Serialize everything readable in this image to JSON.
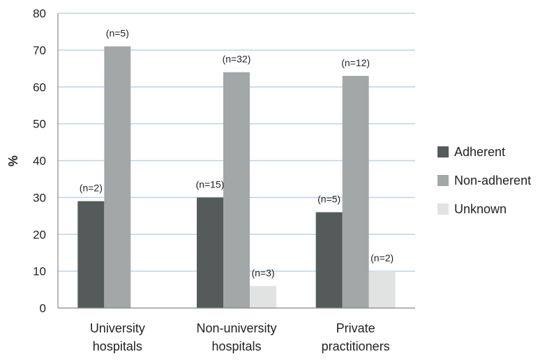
{
  "chart_data": {
    "type": "bar",
    "title": "",
    "xlabel": "",
    "ylabel": "%",
    "ylim": [
      0,
      80
    ],
    "yticks": [
      0,
      10,
      20,
      30,
      40,
      50,
      60,
      70,
      80
    ],
    "grid": true,
    "legend_position": "right",
    "categories": [
      [
        "University",
        "hospitals"
      ],
      [
        "Non-university",
        "hospitals"
      ],
      [
        "Private",
        "practitioners"
      ]
    ],
    "series": [
      {
        "name": "Adherent",
        "color": "#555a5a",
        "values": [
          29,
          30,
          26
        ],
        "labels": [
          "(n=2)",
          "(n=15)",
          "(n=5)"
        ]
      },
      {
        "name": "Non-adherent",
        "color": "#a4a7a8",
        "values": [
          71,
          64,
          63
        ],
        "labels": [
          "(n=5)",
          "(n=32)",
          "(n=12)"
        ]
      },
      {
        "name": "Unknown",
        "color": "#e1e2e2",
        "values": [
          0,
          6,
          10
        ],
        "labels": [
          "",
          "(n=3)",
          "(n=2)"
        ]
      }
    ]
  }
}
